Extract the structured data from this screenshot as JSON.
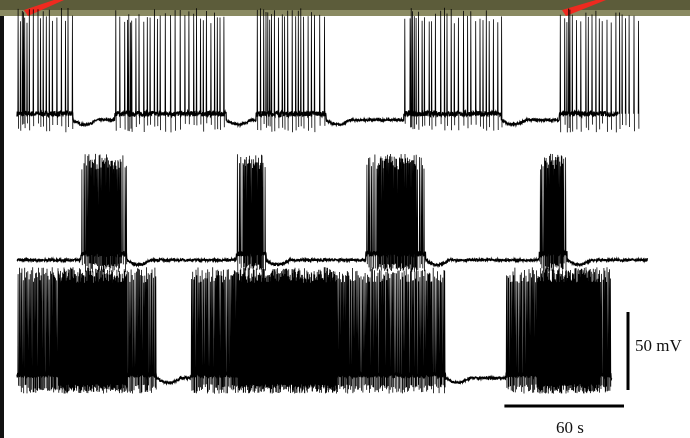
{
  "colors": {
    "trace": "#000000",
    "arrow": "#ee2a1f",
    "top_bar": "#5c5c3a",
    "background": "#ffffff"
  },
  "icons": {
    "left_arrow": "red-arrow-icon",
    "right_arrow": "red-arrow-icon"
  },
  "chart_data": {
    "type": "line",
    "title": "",
    "xlabel": "",
    "ylabel": "",
    "grid": false,
    "legend": "none",
    "x_unit": "s",
    "y_unit": "mV",
    "duration": 300,
    "scale_bar": {
      "y_value": 50,
      "y_label": "50 mV",
      "x_value": 60,
      "x_label": "60 s"
    },
    "series": [
      {
        "bursts": [
          [
            0,
            28
          ],
          [
            49,
            105
          ],
          [
            120,
            155
          ],
          [
            194,
            243
          ],
          [
            272,
            313
          ]
        ],
        "dense_ranges": [
          [
            0,
            5
          ],
          [
            54,
            57
          ],
          [
            124,
            127
          ],
          [
            197,
            200
          ],
          [
            274,
            277
          ]
        ],
        "spike_interval": 1.9,
        "baseline_mv": -62,
        "burst_plateau_mv": -58,
        "spike_peak_mv": 10
      },
      {
        "bursts": [
          [
            32,
            55
          ],
          [
            110,
            125
          ],
          [
            175,
            205
          ],
          [
            262,
            276
          ]
        ],
        "dense_ranges": [
          [
            35,
            52
          ],
          [
            113,
            123
          ],
          [
            180,
            200
          ],
          [
            264,
            274
          ]
        ],
        "spike_interval": 0.85,
        "baseline_mv": -60,
        "burst_plateau_mv": -56,
        "spike_peak_mv": 8
      },
      {
        "bursts": [
          [
            0,
            70
          ],
          [
            87,
            215
          ],
          [
            245,
            298
          ]
        ],
        "dense_ranges": [
          [
            20,
            55
          ],
          [
            110,
            160
          ],
          [
            260,
            292
          ]
        ],
        "spike_interval": 0.55,
        "baseline_mv": -62,
        "burst_plateau_mv": -60,
        "spike_peak_mv": 9
      }
    ]
  }
}
